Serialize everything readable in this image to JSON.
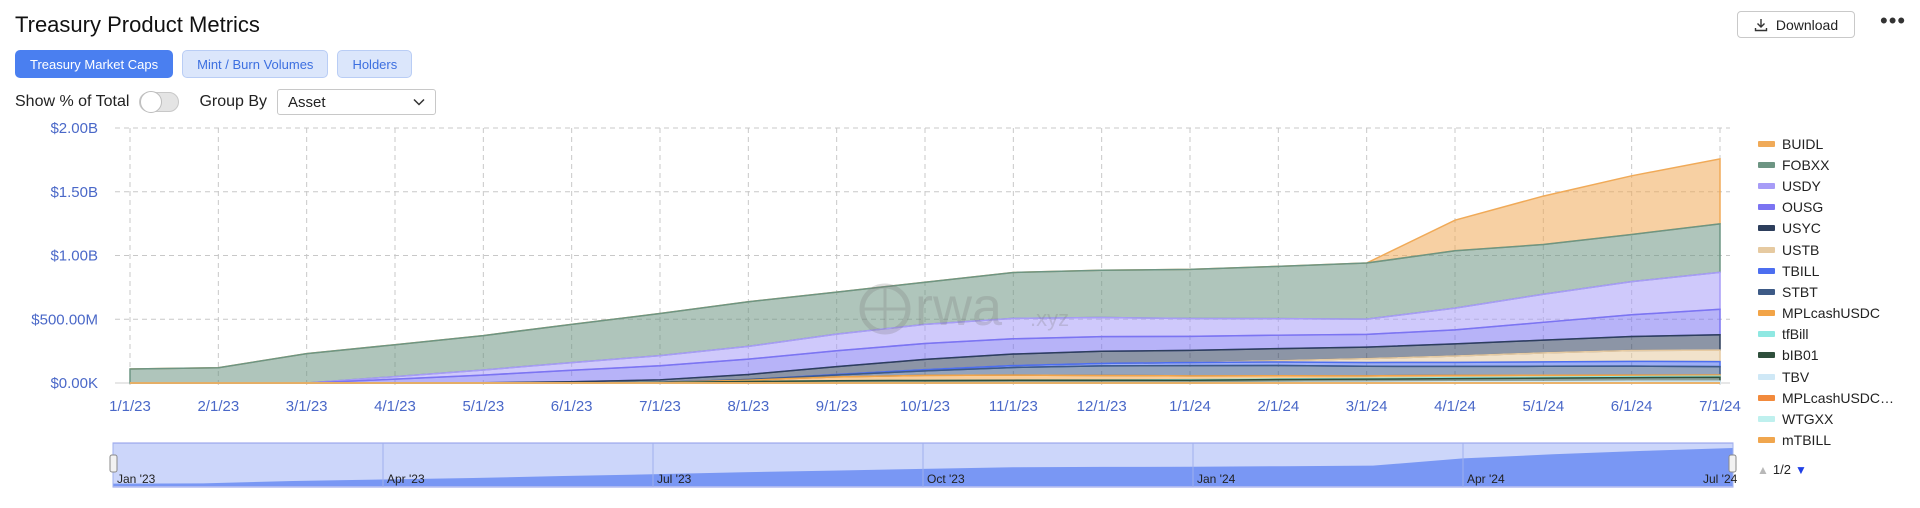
{
  "header": {
    "title": "Treasury Product Metrics",
    "download_label": "Download",
    "more_icon": "more-horizontal-icon"
  },
  "tabs": [
    {
      "label": "Treasury Market Caps",
      "active": true
    },
    {
      "label": "Mint / Burn Volumes",
      "active": false
    },
    {
      "label": "Holders",
      "active": false
    }
  ],
  "controls": {
    "show_pct_label": "Show % of Total",
    "show_pct_on": false,
    "group_by_label": "Group By",
    "group_by_value": "Asset"
  },
  "watermark": {
    "brand": "rwa",
    "suffix": ".xyz"
  },
  "chart_data": {
    "type": "area",
    "stacked": true,
    "title": "",
    "xlabel": "",
    "ylabel": "",
    "x_ticks": [
      "1/1/23",
      "2/1/23",
      "3/1/23",
      "4/1/23",
      "5/1/23",
      "6/1/23",
      "7/1/23",
      "8/1/23",
      "9/1/23",
      "10/1/23",
      "11/1/23",
      "12/1/23",
      "1/1/24",
      "2/1/24",
      "3/1/24",
      "4/1/24",
      "5/1/24",
      "6/1/24",
      "7/1/24"
    ],
    "y_ticks": [
      "$0.00K",
      "$500.00M",
      "$1.00B",
      "$1.50B",
      "$2.00B"
    ],
    "ylim": [
      0,
      2000
    ],
    "y_unit": "USD millions",
    "grid": true,
    "legend_position": "right",
    "series": [
      {
        "name": "mTBILL",
        "color": "#f0a64e",
        "values": [
          0,
          0,
          0,
          0,
          0,
          0,
          0,
          0,
          0,
          0,
          0,
          0,
          0,
          0,
          0,
          0,
          0,
          0,
          0
        ]
      },
      {
        "name": "WTGXX",
        "color": "#bff0ee",
        "values": [
          0,
          0,
          0,
          0,
          0,
          0,
          0,
          0,
          0,
          0,
          0,
          0,
          0,
          0,
          0,
          0,
          0,
          0,
          0
        ]
      },
      {
        "name": "MPLcashUSDC…",
        "color": "#f28a3c",
        "values": [
          0,
          0,
          0,
          0,
          0,
          0,
          0,
          0,
          0,
          0,
          0,
          0,
          0,
          0,
          0,
          0,
          0,
          0,
          0
        ]
      },
      {
        "name": "TBV",
        "color": "#cfe8f6",
        "values": [
          0,
          0,
          0,
          0,
          0,
          0,
          0,
          0,
          0,
          0,
          0,
          0,
          0,
          5,
          8,
          10,
          12,
          14,
          15
        ]
      },
      {
        "name": "bIB01",
        "color": "#2f4f3c",
        "values": [
          0,
          0,
          0,
          0,
          0,
          0,
          5,
          12,
          18,
          20,
          22,
          22,
          22,
          22,
          22,
          24,
          26,
          28,
          30
        ]
      },
      {
        "name": "tfBill",
        "color": "#8fe8e2",
        "values": [
          0,
          0,
          0,
          0,
          0,
          0,
          0,
          0,
          0,
          0,
          0,
          2,
          4,
          5,
          6,
          8,
          8,
          8,
          8
        ]
      },
      {
        "name": "MPLcashUSDC",
        "color": "#f2a447",
        "values": [
          0,
          0,
          0,
          0,
          0,
          0,
          0,
          10,
          30,
          40,
          40,
          35,
          30,
          25,
          20,
          18,
          15,
          12,
          10
        ]
      },
      {
        "name": "STBT",
        "color": "#3d5a86",
        "values": [
          0,
          0,
          0,
          0,
          0,
          0,
          0,
          5,
          15,
          35,
          60,
          75,
          80,
          80,
          75,
          70,
          70,
          70,
          65
        ]
      },
      {
        "name": "TBILL",
        "color": "#4c6ef0",
        "values": [
          0,
          0,
          0,
          0,
          0,
          0,
          0,
          0,
          5,
          10,
          15,
          20,
          25,
          28,
          30,
          32,
          35,
          38,
          40
        ]
      },
      {
        "name": "USTB",
        "color": "#e6caa1",
        "values": [
          0,
          0,
          0,
          0,
          0,
          0,
          0,
          0,
          0,
          0,
          0,
          0,
          0,
          10,
          30,
          50,
          70,
          85,
          90
        ]
      },
      {
        "name": "USYC",
        "color": "#2d3e5c",
        "values": [
          0,
          0,
          0,
          0,
          2,
          10,
          20,
          40,
          60,
          80,
          90,
          95,
          95,
          95,
          90,
          95,
          100,
          110,
          120
        ]
      },
      {
        "name": "OUSG",
        "color": "#7b74f2",
        "values": [
          0,
          0,
          0,
          30,
          60,
          90,
          110,
          120,
          125,
          125,
          120,
          115,
          110,
          105,
          100,
          110,
          140,
          170,
          200
        ]
      },
      {
        "name": "USDY",
        "color": "#a79cf7",
        "values": [
          0,
          0,
          0,
          20,
          40,
          60,
          80,
          100,
          130,
          150,
          160,
          150,
          140,
          130,
          120,
          170,
          220,
          260,
          290
        ]
      },
      {
        "name": "FOBXX",
        "color": "#6d9583",
        "values": [
          110,
          120,
          230,
          250,
          270,
          300,
          330,
          350,
          330,
          330,
          360,
          370,
          385,
          410,
          440,
          450,
          390,
          370,
          380
        ]
      },
      {
        "name": "BUIDL",
        "color": "#f0aa58",
        "values": [
          0,
          0,
          0,
          0,
          0,
          0,
          0,
          0,
          0,
          0,
          0,
          0,
          0,
          0,
          0,
          240,
          380,
          460,
          510
        ]
      }
    ]
  },
  "overview": {
    "labels": [
      "Jan '23",
      "Apr '23",
      "Jul '23",
      "Oct '23",
      "Jan '24",
      "Apr '24",
      "Jul '24"
    ]
  },
  "pager": {
    "text": "1/2"
  }
}
